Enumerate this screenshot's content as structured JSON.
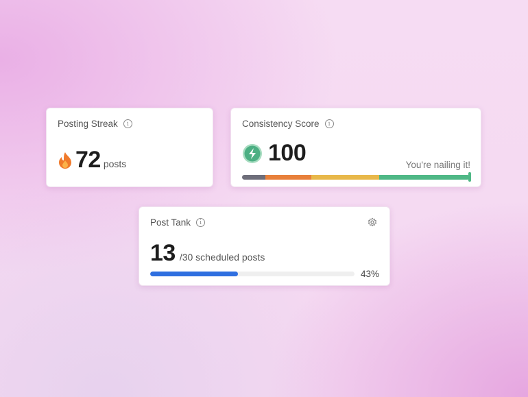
{
  "streak": {
    "title": "Posting Streak",
    "value": "72",
    "unit": "posts",
    "icon": "fire-icon"
  },
  "consistency": {
    "title": "Consistency Score",
    "value": "100",
    "message": "You're nailing it!",
    "icon": "lightning-icon",
    "score_percent": 100,
    "segments_colors": [
      "#6e6e7a",
      "#e8803a",
      "#e8b84a",
      "#4fb886"
    ]
  },
  "tank": {
    "title": "Post Tank",
    "value": "13",
    "suffix": "/30 scheduled posts",
    "percent_label": "43%",
    "progress": 0.43,
    "bar_color": "#2f6fe0"
  }
}
